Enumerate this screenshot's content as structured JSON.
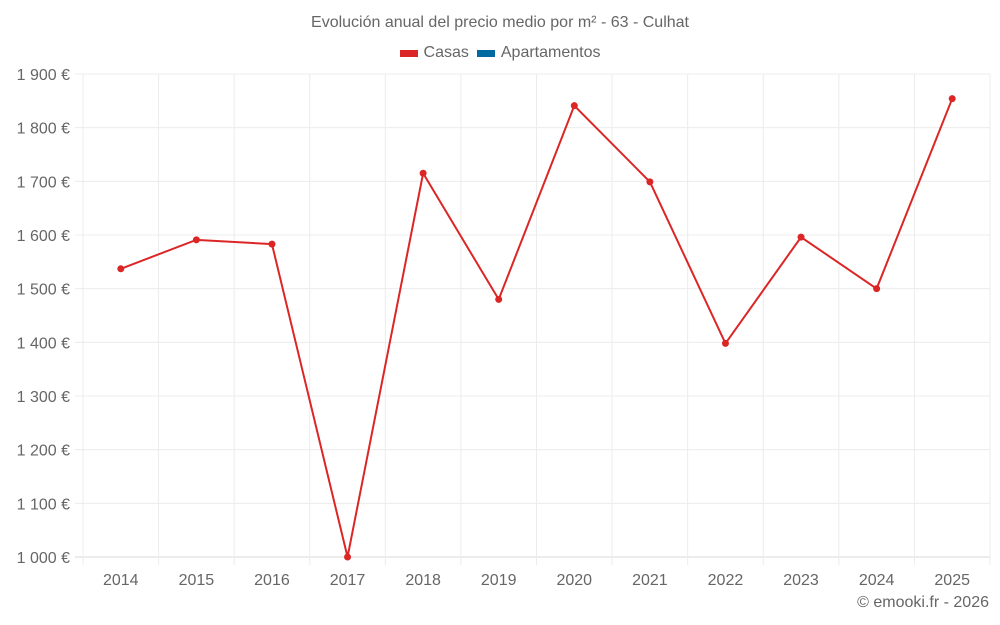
{
  "chart_data": {
    "type": "line",
    "title": "Evolución anual del precio medio por m² - 63 - Culhat",
    "xlabel": "",
    "ylabel": "",
    "categories": [
      "2014",
      "2015",
      "2016",
      "2017",
      "2018",
      "2019",
      "2020",
      "2021",
      "2022",
      "2023",
      "2024",
      "2025"
    ],
    "series": [
      {
        "name": "Casas",
        "color": "#dc2626",
        "values": [
          1537,
          1591,
          1583,
          1000,
          1715,
          1480,
          1841,
          1699,
          1398,
          1596,
          1500,
          1854
        ]
      },
      {
        "name": "Apartamentos",
        "color": "#0369a1",
        "values": []
      }
    ],
    "ylim": [
      1000,
      1900
    ],
    "yticks": [
      1000,
      1100,
      1200,
      1300,
      1400,
      1500,
      1600,
      1700,
      1800,
      1900
    ],
    "ytick_labels": [
      "1 000 €",
      "1 100 €",
      "1 200 €",
      "1 300 €",
      "1 400 €",
      "1 500 €",
      "1 600 €",
      "1 700 €",
      "1 800 €",
      "1 900 €"
    ],
    "grid": true,
    "legend_position": "top"
  },
  "title": "Evolución anual del precio medio por m² - 63 - Culhat",
  "legend": [
    {
      "label": "Casas",
      "color": "#dc2626"
    },
    {
      "label": "Apartamentos",
      "color": "#0369a1"
    }
  ],
  "credit": "© emooki.fr - 2026"
}
